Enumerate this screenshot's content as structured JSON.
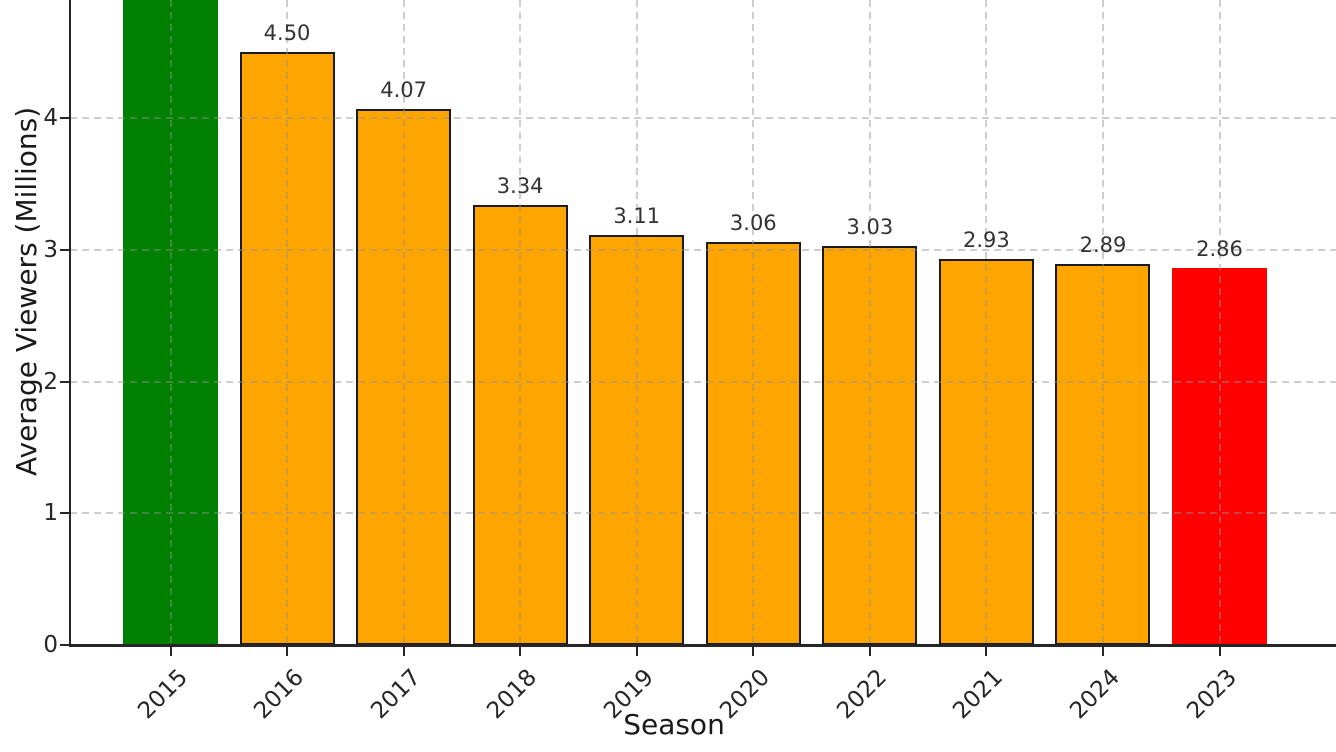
{
  "chart_data": {
    "type": "bar",
    "title": "",
    "xlabel": "Season",
    "ylabel": "Average Viewers (Millions)",
    "categories": [
      "2015",
      "2016",
      "2017",
      "2018",
      "2019",
      "2020",
      "2022",
      "2021",
      "2024",
      "2023"
    ],
    "values": [
      null,
      4.5,
      4.07,
      3.34,
      3.11,
      3.06,
      3.03,
      2.93,
      2.89,
      2.86
    ],
    "value_labels": [
      "",
      "4.50",
      "4.07",
      "3.34",
      "3.11",
      "3.06",
      "3.03",
      "2.93",
      "2.89",
      "2.86"
    ],
    "bar_colors": [
      "#008000",
      "#FFA500",
      "#FFA500",
      "#FFA500",
      "#FFA500",
      "#FFA500",
      "#FFA500",
      "#FFA500",
      "#FFA500",
      "#FF0000"
    ],
    "bar_edge_colors": [
      "none",
      "#1a1a1a",
      "#1a1a1a",
      "#1a1a1a",
      "#1a1a1a",
      "#1a1a1a",
      "#1a1a1a",
      "#1a1a1a",
      "#1a1a1a",
      "none"
    ],
    "yticks": [
      0,
      1,
      2,
      3,
      4
    ],
    "ylim_visible": [
      0,
      4.9
    ],
    "first_bar_clipped_above_view": true,
    "grid": "dashed-both-axes",
    "legend": "none",
    "background_color": "#ffffff",
    "axis_color": "#262626"
  }
}
